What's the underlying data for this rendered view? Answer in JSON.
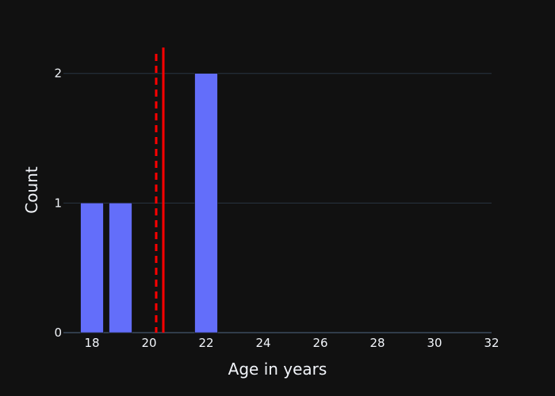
{
  "chart_data": {
    "type": "bar",
    "subtype": "histogram",
    "x": [
      18,
      19,
      22
    ],
    "values": [
      1,
      1,
      2
    ],
    "bin_width": 1,
    "xlabel": "Age in years",
    "ylabel": "Count",
    "xlim": [
      17,
      32
    ],
    "ylim": [
      0,
      2.2
    ],
    "xticks": [
      18,
      20,
      22,
      24,
      26,
      28,
      30,
      32
    ],
    "yticks": [
      0,
      1,
      2
    ],
    "vertical_lines": [
      {
        "x": 20.25,
        "style": "dashed",
        "color": "#ff0000"
      },
      {
        "x": 20.5,
        "style": "solid",
        "color": "#ff0000"
      }
    ],
    "grid": true,
    "legend": "none",
    "colors": {
      "bar": "#636efa",
      "background": "#111111",
      "grid": "#283442",
      "text": "#f2f5fa"
    }
  }
}
